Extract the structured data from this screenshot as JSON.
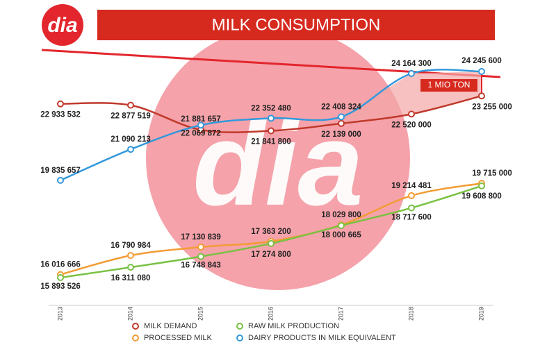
{
  "logo": "dia",
  "chart_data": {
    "type": "line",
    "title": "MILK CONSUMPTION",
    "categories": [
      "2013",
      "2014",
      "2015",
      "2016",
      "2017",
      "2018",
      "2019"
    ],
    "annotation": "1 MIO TON",
    "series": [
      {
        "name": "MILK DEMAND",
        "color": "#c0392b",
        "values": [
          22933532,
          22877519,
          21881657,
          21841800,
          22139000,
          22520000,
          23255000
        ],
        "value_labels": [
          "22 933 532",
          "22 877 519",
          "21 881 657",
          "21 841 800",
          "22 139 000",
          "22 520 000",
          "23 255 000"
        ]
      },
      {
        "name": "PROCESSED MILK",
        "color": "#f39c34",
        "values": [
          16016666,
          16790984,
          17130839,
          17363200,
          18029800,
          19214481,
          19715000
        ],
        "value_labels": [
          "16 016 666",
          "16 790 984",
          "17 130 839",
          "17 363 200",
          "18 029 800",
          "19 214 481",
          "19 715 000"
        ]
      },
      {
        "name": "RAW MILK PRODUCTION",
        "color": "#7ac143",
        "values": [
          15893526,
          16311080,
          16748843,
          17274800,
          18000665,
          18717600,
          19608800
        ],
        "value_labels": [
          "15 893 526",
          "16 311 080",
          "16 748 843",
          "17 274 800",
          "18 000 665",
          "18 717 600",
          "19 608 800"
        ]
      },
      {
        "name": "DAIRY PRODUCTS IN MILK EQUIVALENT",
        "color": "#3498db",
        "values": [
          19835657,
          21090213,
          22069872,
          22352480,
          22408324,
          24164300,
          24245600
        ],
        "value_labels": [
          "19 835 657",
          "21 090 213",
          "22 069 872",
          "22 352 480",
          "22 408 324",
          "24 164 300",
          "24 245 600"
        ]
      }
    ]
  }
}
